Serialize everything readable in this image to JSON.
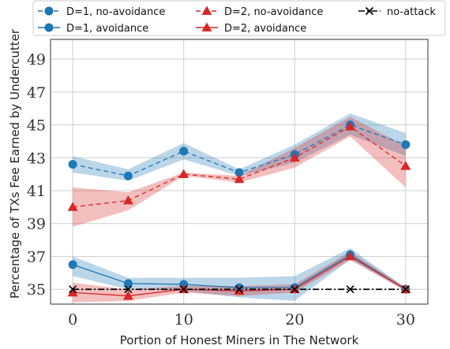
{
  "chart_data": {
    "type": "line",
    "xlabel": "Portion of Honest Miners in The Network",
    "ylabel": "Percentage of TXs Fee Earned by Undercutter",
    "xlim": [
      -2,
      32
    ],
    "ylim": [
      34.1,
      50.2
    ],
    "xticks": [
      0,
      10,
      20,
      30
    ],
    "yticks": [
      35,
      37,
      39,
      41,
      43,
      45,
      47,
      49
    ],
    "grid": true,
    "legend_position": "top",
    "x": [
      0,
      5,
      10,
      15,
      20,
      25,
      30
    ],
    "series": [
      {
        "name": "D=1, no-avoidance",
        "color": "#1f77b4",
        "linestyle": "dashed",
        "marker": "circle",
        "values": [
          42.6,
          41.9,
          43.4,
          42.1,
          43.2,
          45.0,
          43.8
        ],
        "band_lower": [
          42.1,
          41.6,
          42.9,
          41.9,
          42.7,
          44.4,
          43.1
        ],
        "band_upper": [
          43.1,
          42.3,
          43.9,
          42.3,
          43.8,
          45.7,
          44.5
        ]
      },
      {
        "name": "D=1, avoidance",
        "color": "#1f77b4",
        "linestyle": "solid",
        "marker": "circle",
        "values": [
          36.5,
          35.35,
          35.3,
          35.1,
          35.1,
          37.1,
          35.0
        ],
        "band_lower": [
          35.8,
          35.0,
          34.9,
          34.5,
          34.3,
          36.8,
          34.9
        ],
        "band_upper": [
          37.0,
          35.7,
          35.7,
          35.7,
          35.8,
          37.5,
          35.1
        ]
      },
      {
        "name": "D=2, no-avoidance",
        "color": "#d62728",
        "linestyle": "dashed",
        "marker": "triangle",
        "values": [
          40.0,
          40.4,
          42.0,
          41.7,
          43.0,
          44.9,
          42.5
        ],
        "band_lower": [
          38.8,
          39.8,
          41.9,
          41.5,
          42.4,
          44.3,
          41.2
        ],
        "band_upper": [
          41.2,
          40.9,
          42.1,
          41.9,
          43.6,
          45.5,
          43.7
        ]
      },
      {
        "name": "D=2, avoidance",
        "color": "#d62728",
        "linestyle": "solid",
        "marker": "triangle",
        "values": [
          34.8,
          34.6,
          35.0,
          34.9,
          35.0,
          37.0,
          35.0
        ],
        "band_lower": [
          34.2,
          34.3,
          34.8,
          34.6,
          34.8,
          36.8,
          34.9
        ],
        "band_upper": [
          35.4,
          35.0,
          35.2,
          35.2,
          35.3,
          37.3,
          35.1
        ]
      },
      {
        "name": "no-attack",
        "color": "#000000",
        "linestyle": "dashdot",
        "marker": "x",
        "values": [
          35.0,
          35.0,
          35.0,
          35.0,
          35.0,
          35.0,
          35.0
        ]
      }
    ]
  }
}
